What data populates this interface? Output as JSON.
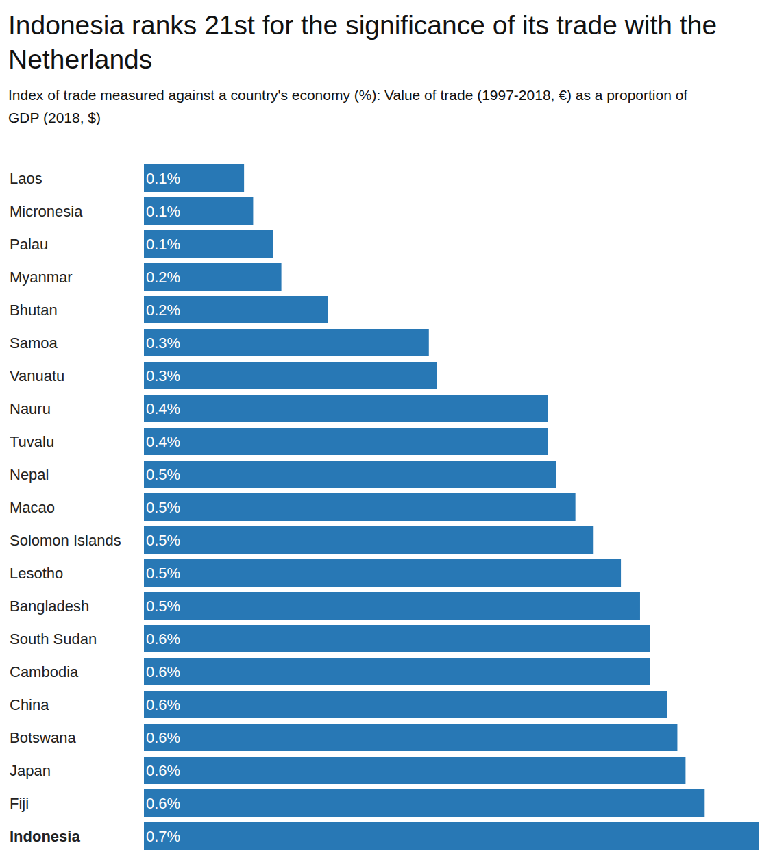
{
  "chart_data": {
    "type": "bar",
    "title": "Indonesia ranks 21st for the significance of its trade with the Netherlands",
    "subtitle": "Index of trade measured against a country's economy (%): Value of trade (1997-2018, €) as a proportion of GDP (2018, $)",
    "orientation": "horizontal",
    "categories": [
      "Laos",
      "Micronesia",
      "Palau",
      "Myanmar",
      "Bhutan",
      "Samoa",
      "Vanuatu",
      "Nauru",
      "Tuvalu",
      "Nepal",
      "Macao",
      "Solomon Islands",
      "Lesotho",
      "Bangladesh",
      "South Sudan",
      "Cambodia",
      "China",
      "Botswana",
      "Japan",
      "Fiji",
      "Indonesia"
    ],
    "values": [
      0.11,
      0.12,
      0.142,
      0.151,
      0.202,
      0.313,
      0.322,
      0.444,
      0.444,
      0.453,
      0.474,
      0.494,
      0.524,
      0.545,
      0.556,
      0.556,
      0.575,
      0.586,
      0.595,
      0.616,
      0.676
    ],
    "value_labels": [
      "0.1%",
      "0.1%",
      "0.1%",
      "0.2%",
      "0.2%",
      "0.3%",
      "0.3%",
      "0.4%",
      "0.4%",
      "0.5%",
      "0.5%",
      "0.5%",
      "0.5%",
      "0.5%",
      "0.6%",
      "0.6%",
      "0.6%",
      "0.6%",
      "0.6%",
      "0.6%",
      "0.7%"
    ],
    "color": "#2878b5",
    "xlim": [
      0,
      0.676
    ],
    "data_labels": true,
    "tick_labels": "y",
    "grid": false
  }
}
